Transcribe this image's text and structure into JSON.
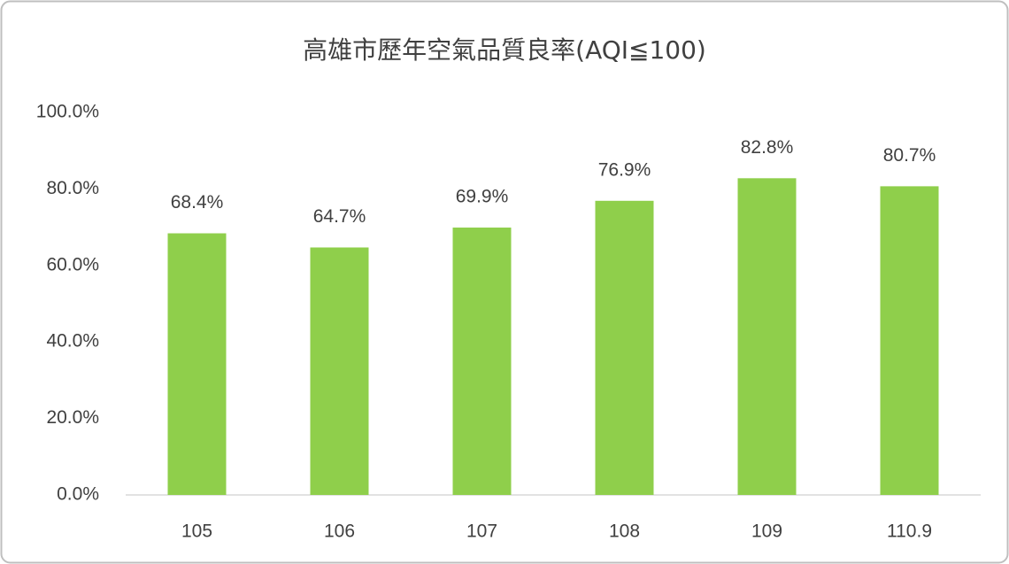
{
  "chart_data": {
    "type": "bar",
    "title": "高雄市歷年空氣品質良率(AQI≦100)",
    "categories": [
      "105",
      "106",
      "107",
      "108",
      "109",
      "110.9"
    ],
    "values": [
      68.4,
      64.7,
      69.9,
      76.9,
      82.8,
      80.7
    ],
    "value_labels": [
      "68.4%",
      "64.7%",
      "69.9%",
      "76.9%",
      "82.8%",
      "80.7%"
    ],
    "color": "#8fcf4b",
    "ylim": [
      0,
      100
    ],
    "yticks": [
      {
        "value": 0,
        "label": "0.0%"
      },
      {
        "value": 20,
        "label": "20.0%"
      },
      {
        "value": 40,
        "label": "40.0%"
      },
      {
        "value": 60,
        "label": "60.0%"
      },
      {
        "value": 80,
        "label": "80.0%"
      },
      {
        "value": 100,
        "label": "100.0%"
      }
    ],
    "grid": false
  }
}
